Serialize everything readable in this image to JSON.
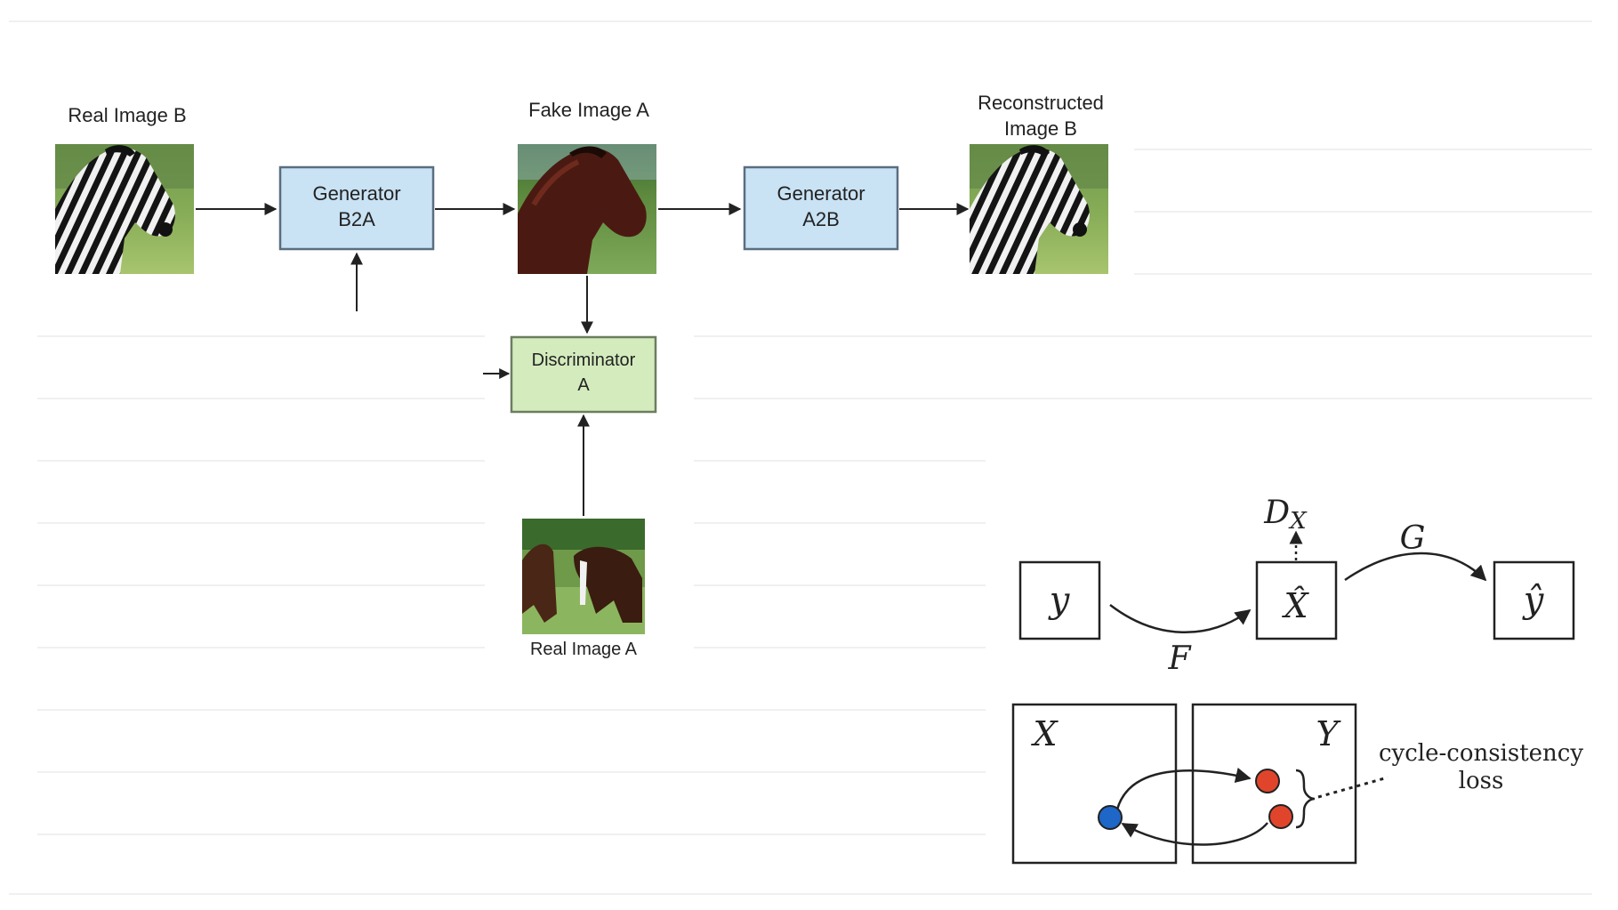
{
  "pipeline": {
    "real_image_b": "Real Image B",
    "generator_b2a": [
      "Generator",
      "B2A"
    ],
    "fake_image_a": "Fake Image A",
    "generator_a2b": [
      "Generator",
      "A2B"
    ],
    "reconstructed_image_b": [
      "Reconstructed",
      "Image B"
    ],
    "discriminator_a": [
      "Discriminator",
      "A"
    ],
    "real_image_a": "Real Image A"
  },
  "cycle_diagram": {
    "node_y": "y",
    "node_x_hat": "X̂",
    "node_y_hat": "ŷ",
    "label_dx": "D",
    "label_dx_sub": "X",
    "label_g": "G",
    "label_f": "F",
    "domain_x": "X",
    "domain_y": "Y",
    "loss_label": [
      "cycle-consistency",
      "loss"
    ]
  },
  "colors": {
    "generator_fill": "#c9e2f4",
    "generator_stroke": "#5a6e80",
    "discriminator_fill": "#d4ecbd",
    "discriminator_stroke": "#6c7d60",
    "dot_blue": "#1e66c8",
    "dot_red": "#e0452c"
  },
  "icons": {
    "real_image_b": "zebra-photo",
    "fake_image_a": "horse-photo",
    "reconstructed_image_b": "zebra-photo",
    "real_image_a": "two-horses-photo"
  }
}
